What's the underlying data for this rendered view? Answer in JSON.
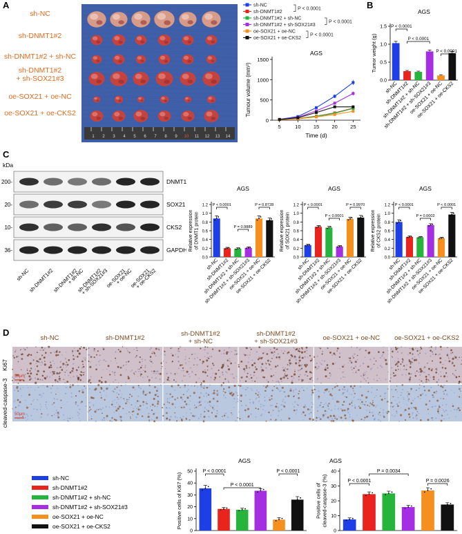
{
  "panels": {
    "a": "A",
    "b": "B",
    "c": "C",
    "d": "D"
  },
  "colors": {
    "blue": "#1f3fe6",
    "red": "#e8241c",
    "green": "#26b43c",
    "purple": "#a52de2",
    "orange": "#f5901e",
    "black": "#111111",
    "photoBg": "#3f5ea8",
    "label": "#e06b1e",
    "ihc": "#7b4a20"
  },
  "groups": [
    "sh-NC",
    "sh-DNMT1#2",
    "sh-DNMT1#2 + sh-NC",
    "sh-DNMT1#2 + sh-SOX21#3",
    "oe-SOX21 + oe-NC",
    "oe-SOX21 + oe-CKS2"
  ],
  "panelA": {
    "row_labels": [
      [
        "sh-NC"
      ],
      [
        "sh-DNMT1#2"
      ],
      [
        "sh-DNMT1#2 + sh-NC"
      ],
      [
        "sh-DNMT1#2",
        "+ sh-SOX21#3"
      ],
      [
        "oe-SOX21 + oe-NC"
      ],
      [
        "oe-SOX21 + oe-CKS2"
      ]
    ],
    "ruler_numbers": [
      "1",
      "2",
      "3",
      "4",
      "5",
      "6",
      "7",
      "8",
      "9",
      "10",
      "11",
      "12",
      "13",
      "14"
    ]
  },
  "legendA": {
    "items": [
      "sh-NC",
      "sh-DNMT1#2",
      "sh-DNMT1#2 + sh-NC",
      "sh-DNMT1#2 + sh-SOX21#3",
      "oe-SOX21 + oe-NC",
      "oe-SOX21 + oe-CKS2"
    ],
    "pvals": [
      "P < 0.0001",
      "P < 0.0001",
      "P < 0.0001"
    ]
  },
  "chart_data": [
    {
      "id": "tumour-volume",
      "type": "line",
      "title": "AGS",
      "xlabel": "Time (d)",
      "ylabel": "Tumour volume (mm³)",
      "x": [
        5,
        10,
        15,
        20,
        25
      ],
      "xlim": [
        3,
        27
      ],
      "ylim": [
        0,
        1500
      ],
      "yticks": [
        0,
        500,
        1000,
        1500
      ],
      "series": [
        {
          "name": "sh-NC",
          "values": [
            20,
            90,
            310,
            590,
            930
          ]
        },
        {
          "name": "sh-DNMT1#2",
          "values": [
            15,
            45,
            100,
            180,
            300
          ]
        },
        {
          "name": "sh-DNMT1#2 + sh-NC",
          "values": [
            15,
            40,
            95,
            170,
            290
          ]
        },
        {
          "name": "sh-DNMT1#2 + sh-SOX21#3",
          "values": [
            18,
            70,
            230,
            420,
            660
          ]
        },
        {
          "name": "oe-SOX21 + oe-NC",
          "values": [
            12,
            35,
            80,
            140,
            220
          ]
        },
        {
          "name": "oe-SOX21 + oe-CKS2",
          "values": [
            18,
            60,
            190,
            330,
            330
          ]
        }
      ]
    },
    {
      "id": "tumor-weight",
      "type": "bar",
      "title": "AGS",
      "ylabel": "Tumor weight (g)",
      "ylim": [
        0,
        1.5
      ],
      "yticks": [
        "0.0",
        "0.5",
        "1.0",
        "1.5"
      ],
      "categories": [
        "sh-NC",
        "sh-DNMT1#2",
        "sh-DNMT1#2 + sh-NC",
        "sh-DNMT1#2 + sh-SOX21#3",
        "oe-SOX21 + oe-NC",
        "oe-SOX21 + oe-CKS2"
      ],
      "values": [
        1.03,
        0.25,
        0.23,
        0.8,
        0.13,
        0.75
      ],
      "errors": [
        0.05,
        0.02,
        0.02,
        0.04,
        0.02,
        0.05
      ],
      "brackets": [
        {
          "a": 0,
          "b": 1,
          "label": "P < 0.0001",
          "level": 0
        },
        {
          "a": 1,
          "b": 3,
          "label": "P < 0.0001",
          "level": 1
        },
        {
          "a": 4,
          "b": 5,
          "label": "P < 0.0001",
          "level": 2
        }
      ]
    },
    {
      "id": "dnmt1-expr",
      "type": "bar",
      "title": "AGS",
      "ylabel": [
        "Relative expression",
        "of DNMT1 protein"
      ],
      "ylim": [
        0,
        1.2
      ],
      "yticks": [
        "0.0",
        "0.2",
        "0.4",
        "0.6",
        "0.8",
        "1.0",
        "1.2"
      ],
      "categories": [
        "sh-NC",
        "sh-DNMT1#2",
        "sh-DNMT1#2 + sh-NC",
        "sh-DNMT1#2 + sh-SOX21#3",
        "oe-SOX21 + oe-NC",
        "oe-SOX21 + oe-CKS2"
      ],
      "values": [
        0.88,
        0.2,
        0.19,
        0.21,
        0.88,
        0.84
      ],
      "errors": [
        0.06,
        0.02,
        0.02,
        0.02,
        0.06,
        0.05
      ],
      "brackets": [
        {
          "a": 0,
          "b": 1,
          "label": "P < 0.0001",
          "level": 0
        },
        {
          "a": 2,
          "b": 3,
          "label": "P = 0.9889",
          "level": 2
        },
        {
          "a": 4,
          "b": 5,
          "label": "P = 0.8728",
          "level": 0
        }
      ]
    },
    {
      "id": "sox21-expr",
      "type": "bar",
      "title": "AGS",
      "ylabel": [
        "Relative expression",
        "of SOX21 protein"
      ],
      "ylim": [
        0,
        1.2
      ],
      "yticks": [
        "0.0",
        "0.2",
        "0.4",
        "0.6",
        "0.8",
        "1.0",
        "1.2"
      ],
      "categories": [
        "sh-NC",
        "sh-DNMT1#2",
        "sh-DNMT1#2 + sh-NC",
        "sh-DNMT1#2 + sh-SOX21#3",
        "oe-SOX21 + oe-NC",
        "oe-SOX21 + oe-CKS2"
      ],
      "values": [
        0.27,
        0.69,
        0.67,
        0.24,
        0.87,
        0.9
      ],
      "errors": [
        0.02,
        0.03,
        0.03,
        0.02,
        0.04,
        0.05
      ],
      "brackets": [
        {
          "a": 0,
          "b": 1,
          "label": "P < 0.0001",
          "level": 0
        },
        {
          "a": 2,
          "b": 3,
          "label": "P < 0.0001",
          "level": 1
        },
        {
          "a": 4,
          "b": 5,
          "label": "P = 0.9970",
          "level": 0
        }
      ]
    },
    {
      "id": "cks2-expr",
      "type": "bar",
      "title": "AGS",
      "ylabel": [
        "Relative expression",
        "of CKS2 protein"
      ],
      "ylim": [
        0,
        1.2
      ],
      "yticks": [
        "0.0",
        "0.2",
        "0.4",
        "0.6",
        "0.8",
        "1.0",
        "1.2"
      ],
      "categories": [
        "sh-NC",
        "sh-DNMT1#2",
        "sh-DNMT1#2 + sh-NC",
        "sh-DNMT1#2 + sh-SOX21#3",
        "oe-SOX21 + oe-NC",
        "oe-SOX21 + oe-CKS2"
      ],
      "values": [
        0.8,
        0.46,
        0.45,
        0.73,
        0.43,
        0.97
      ],
      "errors": [
        0.05,
        0.02,
        0.02,
        0.03,
        0.02,
        0.05
      ],
      "brackets": [
        {
          "a": 0,
          "b": 1,
          "label": "P < 0.0001",
          "level": 0
        },
        {
          "a": 2,
          "b": 3,
          "label": "P = 0.0002",
          "level": 1
        },
        {
          "a": 4,
          "b": 5,
          "label": "P < 0.0001",
          "level": 0
        }
      ]
    },
    {
      "id": "ki67-positive",
      "type": "bar",
      "title": "AGS",
      "ylabel": "Positive cells of Ki67 (%)",
      "ylim": [
        0,
        50
      ],
      "yticks": [
        "0",
        "10",
        "20",
        "30",
        "40",
        "50"
      ],
      "categories": [
        "sh-NC",
        "sh-DNMT1#2",
        "sh-DNMT1#2 + sh-NC",
        "sh-DNMT1#2 + sh-SOX21#3",
        "oe-SOX21 + oe-NC",
        "oe-SOX21 + oe-CKS2"
      ],
      "values": [
        35.5,
        18.2,
        17.5,
        33.5,
        9.2,
        26
      ],
      "errors": [
        2.5,
        1.2,
        1.3,
        1.8,
        1.6,
        2.5
      ],
      "brackets": [
        {
          "a": 0,
          "b": 1,
          "label": "P < 0.0001",
          "level": 0
        },
        {
          "a": 1,
          "b": 3,
          "label": "P < 0.0001",
          "level": 1
        },
        {
          "a": 4,
          "b": 5,
          "label": "P < 0.0001",
          "level": 0
        }
      ]
    },
    {
      "id": "caspase3-positive",
      "type": "bar",
      "title": "AGS",
      "ylabel": [
        "Positive cells of",
        "cleaved-caspase-3 (%)"
      ],
      "ylim": [
        0,
        40
      ],
      "yticks": [
        "0",
        "10",
        "20",
        "30",
        "40"
      ],
      "categories": [
        "sh-NC",
        "sh-DNMT1#2",
        "sh-DNMT1#2 + sh-NC",
        "sh-DNMT1#2 + sh-SOX21#3",
        "oe-SOX21 + oe-NC",
        "oe-SOX21 + oe-CKS2"
      ],
      "values": [
        7.5,
        24.5,
        25,
        15.8,
        27,
        17.5
      ],
      "errors": [
        1,
        1.5,
        1.5,
        1.2,
        1.8,
        1.2
      ],
      "brackets": [
        {
          "a": 0,
          "b": 1,
          "label": "P < 0.0001",
          "level": 1
        },
        {
          "a": 1,
          "b": 3,
          "label": "P = 0.0034",
          "level": 0
        },
        {
          "a": 4,
          "b": 5,
          "label": "P = 0.0026",
          "level": 1
        }
      ]
    }
  ],
  "blot": {
    "kda": "kDa",
    "bands": [
      {
        "name": "DNMT1",
        "marker": "200-"
      },
      {
        "name": "SOX21",
        "marker": "20-"
      },
      {
        "name": "CKS2",
        "marker": "10-"
      },
      {
        "name": "GAPDH",
        "marker": "36-"
      }
    ],
    "lanes": [
      [
        "sh-NC"
      ],
      [
        "sh-DNMT1#2"
      ],
      [
        "sh-DNMT1#2",
        "+ sh-NC"
      ],
      [
        "sh-DNMT1#2",
        "+ sh-SOX21#3"
      ],
      [
        "oe-SOX21",
        "+ oe-NC"
      ],
      [
        "oe-SOX21",
        "+ oe-CKS2"
      ]
    ]
  },
  "ihc": {
    "headers": [
      [
        "sh-NC"
      ],
      [
        "sh-DNMT1#2"
      ],
      [
        "sh-DNMT1#2",
        "+ sh-NC"
      ],
      [
        "sh-DNMT1#2",
        "+ sh-SOX21#3"
      ],
      [
        "oe-SOX21 + oe-NC"
      ],
      [
        "oe-SOX21 + oe-CKS2"
      ]
    ],
    "rows": [
      "Ki67",
      "cleaved-caspase-3"
    ],
    "scale": "50μm"
  },
  "legendD": {
    "items": [
      "sh-NC",
      "sh-DNMT1#2",
      "sh-DNMT1#2 + sh-NC",
      "sh-DNMT1#2 + sh-SOX21#3",
      "oe-SOX21 + oe-NC",
      "oe-SOX21 + oe-CKS2"
    ]
  }
}
